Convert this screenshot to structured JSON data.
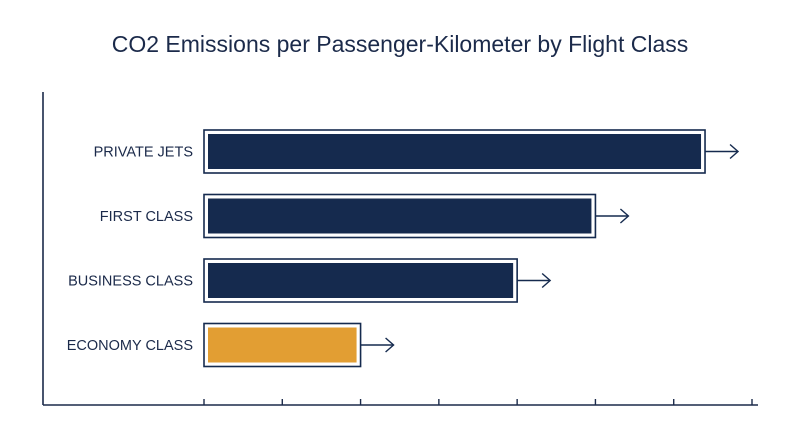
{
  "chart_data": {
    "type": "bar",
    "orientation": "horizontal",
    "title": "CO2 Emissions per Passenger-Kilometer by Flight Class",
    "xlabel": "",
    "ylabel": "",
    "categories": [
      "PRIVATE JETS",
      "FIRST CLASS",
      "BUSINESS CLASS",
      "ECONOMY CLASS"
    ],
    "values": [
      6.4,
      5.0,
      4.0,
      2.0
    ],
    "xlim": [
      0,
      7
    ],
    "tick_count": 8,
    "grid": false,
    "legend": "none",
    "colors": [
      "#152a4e",
      "#152a4e",
      "#152a4e",
      "#e29e33"
    ],
    "outline_color": "#152a4e",
    "axis_color": "#1b2a4a"
  }
}
